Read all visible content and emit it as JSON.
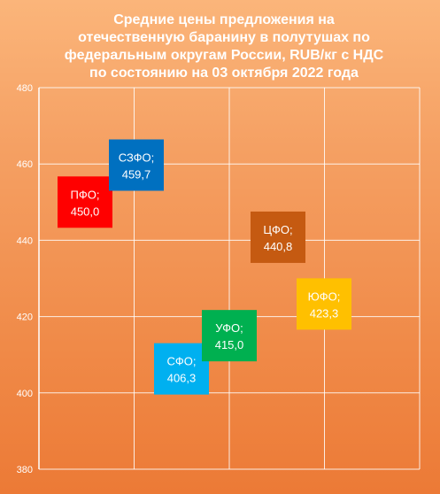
{
  "chart_data": {
    "type": "scatter",
    "title_lines": [
      "Средние цены предложения  на",
      "отечественную баранину  в полутушах по",
      "федеральным округам  России,  RUB/кг с НДС",
      "по состоянию  на 03 октября  2022 года"
    ],
    "ylim": [
      380,
      480
    ],
    "yticks": [
      380,
      400,
      420,
      440,
      460,
      480
    ],
    "ytick_labels": [
      "380",
      "400",
      "420",
      "440",
      "460",
      "480"
    ],
    "x_grid_count": 4,
    "grid": true,
    "points": [
      {
        "name": "ПФО",
        "value": 450.0,
        "value_label": "450,0",
        "color": "#ff0000"
      },
      {
        "name": "СЗФО",
        "value": 459.7,
        "value_label": "459,7",
        "color": "#0070c0"
      },
      {
        "name": "СФО",
        "value": 406.3,
        "value_label": "406,3",
        "color": "#00b0f0"
      },
      {
        "name": "УФО",
        "value": 415.0,
        "value_label": "415,0",
        "color": "#00b050"
      },
      {
        "name": "ЦФО",
        "value": 440.8,
        "value_label": "440,8",
        "color": "#c55a11"
      },
      {
        "name": "ЮФО",
        "value": 423.3,
        "value_label": "423,3",
        "color": "#ffc000"
      }
    ]
  }
}
